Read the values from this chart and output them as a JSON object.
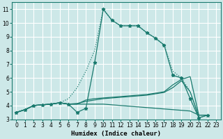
{
  "xlabel": "Humidex (Indice chaleur)",
  "xlim": [
    -0.5,
    23.5
  ],
  "ylim": [
    3,
    11.5
  ],
  "xticks": [
    0,
    1,
    2,
    3,
    4,
    5,
    6,
    7,
    8,
    9,
    10,
    11,
    12,
    13,
    14,
    15,
    16,
    17,
    18,
    19,
    20,
    21,
    22,
    23
  ],
  "yticks": [
    3,
    4,
    5,
    6,
    7,
    8,
    9,
    10,
    11
  ],
  "bg_color": "#cde8e8",
  "line_color": "#1a7a6e",
  "grid_color": "#b0d8d8",
  "dotted_line": {
    "x": [
      0,
      1,
      2,
      3,
      4,
      5,
      6,
      7,
      8,
      9,
      10,
      11,
      12,
      13,
      14,
      15,
      16,
      17,
      18,
      19,
      20,
      21,
      22
    ],
    "y": [
      3.5,
      3.7,
      4.0,
      4.05,
      4.1,
      4.2,
      4.5,
      5.3,
      6.5,
      8.0,
      11.0,
      10.2,
      9.8,
      9.8,
      9.8,
      9.3,
      8.9,
      8.4,
      6.5,
      6.0,
      5.0,
      3.1,
      3.3
    ]
  },
  "marker_line": {
    "x": [
      0,
      1,
      2,
      3,
      4,
      5,
      6,
      7,
      8,
      9,
      10,
      11,
      12,
      13,
      14,
      15,
      16,
      17,
      18,
      19,
      20,
      21,
      22
    ],
    "y": [
      3.5,
      3.7,
      4.0,
      4.05,
      4.1,
      4.2,
      4.1,
      3.5,
      3.8,
      7.1,
      11.0,
      10.2,
      9.8,
      9.8,
      9.8,
      9.3,
      8.9,
      8.4,
      6.2,
      6.0,
      4.5,
      3.1,
      3.3
    ]
  },
  "flat_lines": [
    {
      "x": [
        0,
        1,
        2,
        3,
        4,
        5,
        6,
        7,
        8,
        9,
        10,
        11,
        12,
        13,
        14,
        15,
        16,
        17,
        18,
        19,
        20,
        21
      ],
      "y": [
        3.5,
        3.7,
        4.0,
        4.05,
        4.1,
        4.2,
        4.1,
        4.15,
        4.3,
        4.4,
        4.5,
        4.55,
        4.6,
        4.65,
        4.7,
        4.75,
        4.85,
        4.95,
        5.3,
        5.8,
        5.0,
        3.2
      ]
    },
    {
      "x": [
        0,
        1,
        2,
        3,
        4,
        5,
        6,
        7,
        8,
        9,
        10,
        11,
        12,
        13,
        14,
        15,
        16,
        17,
        18,
        19,
        20,
        21,
        22
      ],
      "y": [
        3.5,
        3.7,
        4.0,
        4.05,
        4.1,
        4.2,
        4.1,
        4.1,
        4.1,
        4.1,
        4.1,
        4.05,
        4.0,
        3.95,
        3.9,
        3.85,
        3.8,
        3.75,
        3.7,
        3.65,
        3.6,
        3.3,
        3.3
      ]
    },
    {
      "x": [
        0,
        1,
        2,
        3,
        4,
        5,
        6,
        7,
        8,
        9,
        10,
        11,
        12,
        13,
        14,
        15,
        16,
        17,
        18,
        19,
        20,
        21,
        22
      ],
      "y": [
        3.5,
        3.7,
        4.0,
        4.05,
        4.1,
        4.2,
        4.1,
        4.1,
        4.4,
        4.5,
        4.55,
        4.6,
        4.65,
        4.7,
        4.75,
        4.8,
        4.9,
        5.0,
        5.5,
        5.9,
        6.1,
        3.3,
        3.3
      ]
    }
  ]
}
